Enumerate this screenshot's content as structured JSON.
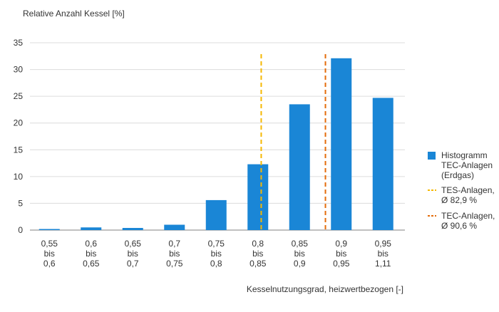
{
  "chart_data": {
    "type": "bar",
    "ylabel": "Relative Anzahl Kessel [%]",
    "xlabel": "Kesselnutzungsgrad, heizwertbezogen [-]",
    "ylim": [
      0,
      35
    ],
    "yticks": [
      0,
      5,
      10,
      15,
      20,
      25,
      30,
      35
    ],
    "grid": "horizontal",
    "legend_position": "right",
    "categories": [
      [
        "0,55",
        "bis",
        "0,6"
      ],
      [
        "0,6",
        "bis",
        "0,65"
      ],
      [
        "0,65",
        "bis",
        "0,7"
      ],
      [
        "0,7",
        "bis",
        "0,75"
      ],
      [
        "0,75",
        "bis",
        "0,8"
      ],
      [
        "0,8",
        "bis",
        "0,85"
      ],
      [
        "0,85",
        "bis",
        "0,9"
      ],
      [
        "0,9",
        "bis",
        "0,95"
      ],
      [
        "0,95",
        "bis",
        "1,11"
      ]
    ],
    "series": [
      {
        "name": [
          "Histogramm",
          "TEC-Anlagen",
          "(Erdgas)"
        ],
        "color": "#1a86d6",
        "values": [
          0.2,
          0.5,
          0.4,
          1.0,
          5.6,
          12.3,
          23.5,
          32.1,
          24.7
        ]
      }
    ],
    "reference_lines": [
      {
        "name": [
          "TES-Anlagen,",
          "Ø 82,9 %"
        ],
        "x": 0.829,
        "color": "#f5b800",
        "style": "dashed"
      },
      {
        "name": [
          "TEC-Anlagen,",
          "Ø 90,6 %"
        ],
        "x": 0.906,
        "color": "#e46c0a",
        "style": "dashed"
      }
    ]
  }
}
